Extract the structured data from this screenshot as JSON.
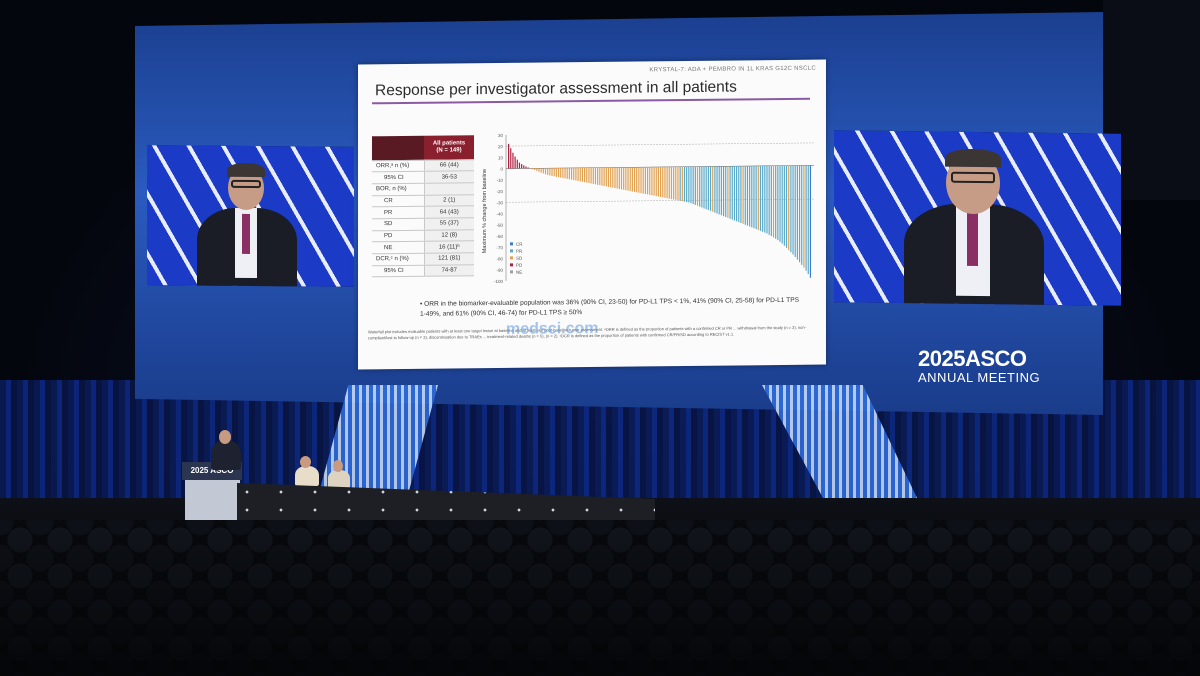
{
  "slide": {
    "tag": "KRYSTAL-7: ADA + PEMBRO IN 1L KRAS G12C NSCLC",
    "title": "Response per investigator assessment in all patients",
    "table_header": "All patients\n(N = 149)",
    "rows": [
      {
        "label": "ORR,ᵃ n (%)",
        "value": "66 (44)"
      },
      {
        "label": "95% CI",
        "value": "36-53",
        "indent": true
      },
      {
        "label": "BOR, n (%)",
        "value": ""
      },
      {
        "label": "CR",
        "value": "2 (1)",
        "indent": true
      },
      {
        "label": "PR",
        "value": "64 (43)",
        "indent": true
      },
      {
        "label": "SD",
        "value": "55 (37)",
        "indent": true
      },
      {
        "label": "PD",
        "value": "12 (8)",
        "indent": true
      },
      {
        "label": "NE",
        "value": "16 (11)ᵇ",
        "indent": true
      },
      {
        "label": "DCR,ᶜ n (%)",
        "value": "121 (81)"
      },
      {
        "label": "95% CI",
        "value": "74-87",
        "indent": true
      }
    ],
    "y_axis_label": "Maximum % change from baseline",
    "y_ticks": [
      "30",
      "20",
      "10",
      "0",
      "-10",
      "-20",
      "-30",
      "-40",
      "-50",
      "-60",
      "-70",
      "-80",
      "-90",
      "-100"
    ],
    "legend": [
      "CR",
      "PR",
      "SD",
      "PD",
      "NE"
    ],
    "legend_colors": [
      "#3a7bd5",
      "#5aa9c9",
      "#e0a050",
      "#b02040",
      "#9aa0a8"
    ],
    "bullet": "ORR in the biomarker-evaluable population was 36% (90% CI, 23-50) for PD-L1 TPS < 1%, 41% (90% CI, 25-58) for PD-L1 TPS 1-49%, and 61% (90% CI, 46-74) for PD-L1 TPS ≥ 50%",
    "footnote": "Waterfall plot includes evaluable patients with at least one target lesion at baseline and at least one post-baseline tumor assessment. ᵃORR is defined as the proportion of patients with a confirmed CR or PR ... withdrawal from the study (n = 2), non-compliant/lost to follow-up (n = 3), discontinuation due to TRAEs ... treatment-related deaths (n = 5), (n = 2). ᶜDCR is defined as the proportion of patients with confirmed CR/PR/SD according to RECIST v1.1.",
    "watermark": "medsci.com"
  },
  "chart_data": {
    "type": "bar",
    "title": "",
    "xlabel": "",
    "ylabel": "Maximum % change from baseline",
    "ylim": [
      -100,
      30
    ],
    "series_colors": {
      "PR": "#5aa9c9",
      "SD": "#e0a050",
      "PD": "#b02040",
      "CR": "#3a7bd5"
    },
    "values_note": "waterfall sorted descending",
    "values": [
      22,
      12,
      5,
      2,
      0,
      -2,
      -4,
      -6,
      -7,
      -8,
      -9,
      -10,
      -11,
      -12,
      -13,
      -14,
      -15,
      -16,
      -17,
      -18,
      -19,
      -20,
      -21,
      -22,
      -23,
      -24,
      -25,
      -26,
      -27,
      -28,
      -29,
      -30,
      -31,
      -32,
      -34,
      -36,
      -38,
      -40,
      -42,
      -44,
      -46,
      -48,
      -50,
      -52,
      -54,
      -56,
      -58,
      -60,
      -63,
      -66,
      -70,
      -75,
      -80,
      -86,
      -92,
      -100
    ]
  },
  "event": {
    "year": "2025",
    "name": "ASCO",
    "subtitle": "ANNUAL MEETING"
  },
  "podium_label": "2025 ASCO",
  "table_logo": "ASCO"
}
